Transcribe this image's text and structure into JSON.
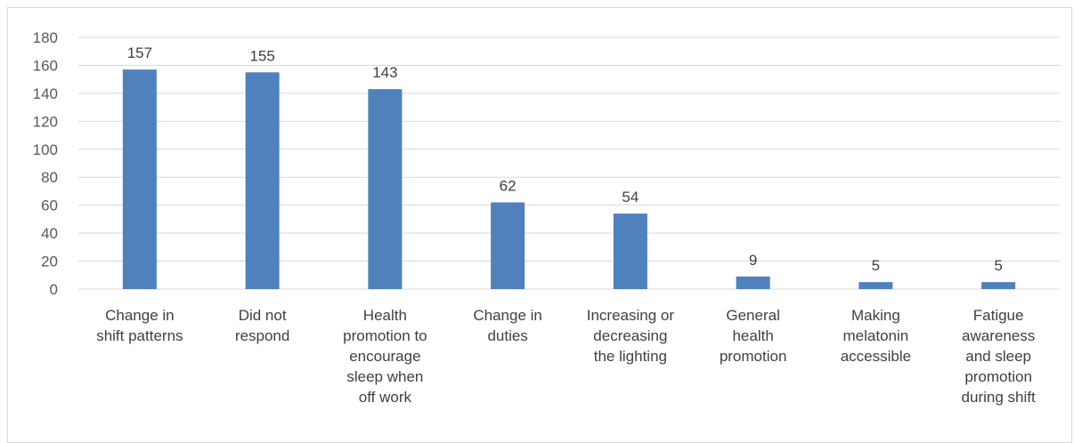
{
  "chart_data": {
    "type": "bar",
    "categories": [
      [
        "Change in",
        "shift patterns"
      ],
      [
        "Did not",
        "respond"
      ],
      [
        "Health",
        "promotion to",
        "encourage",
        "sleep when",
        "off work"
      ],
      [
        "Change in",
        "duties"
      ],
      [
        "Increasing or",
        "decreasing",
        "the lighting"
      ],
      [
        "General",
        "health",
        "promotion"
      ],
      [
        "Making",
        "melatonin",
        "accessible"
      ],
      [
        "Fatigue",
        "awareness",
        "and sleep",
        "promotion",
        "during shift"
      ]
    ],
    "values": [
      157,
      155,
      143,
      62,
      54,
      9,
      5,
      5
    ],
    "data_labels": [
      "157",
      "155",
      "143",
      "62",
      "54",
      "9",
      "5",
      "5"
    ],
    "ylim": [
      0,
      180
    ],
    "yticks": [
      "0",
      "20",
      "40",
      "60",
      "80",
      "100",
      "120",
      "140",
      "160",
      "180"
    ],
    "grid": true,
    "legend": "none",
    "title": "",
    "xlabel": "",
    "ylabel": "",
    "colors": {
      "bar": "#4f81bd",
      "grid": "#d9d9d9",
      "axis": "#d9d9d9"
    }
  }
}
